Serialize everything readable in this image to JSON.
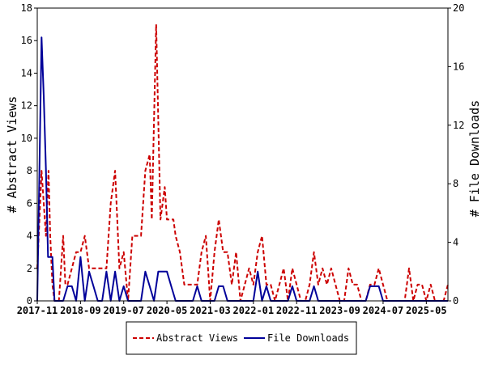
{
  "chart_data": {
    "type": "line",
    "xlabel": "",
    "ylabel_left": "# Abstract Views",
    "ylabel_right": "# File Downloads",
    "ylim_left": [
      0,
      18
    ],
    "ylim_right": [
      0,
      20
    ],
    "yticks_left": [
      "0",
      "2",
      "4",
      "6",
      "8",
      "10",
      "12",
      "14",
      "16",
      "18"
    ],
    "yticks_right": [
      "0",
      "4",
      "8",
      "12",
      "16",
      "20"
    ],
    "x_start_index": 0,
    "x_end_index": 95,
    "x_ticks": [
      {
        "label": "2017-11",
        "index": 0
      },
      {
        "label": "2018-09",
        "index": 10
      },
      {
        "label": "2019-07",
        "index": 20
      },
      {
        "label": "2020-05",
        "index": 30
      },
      {
        "label": "2021-03",
        "index": 40
      },
      {
        "label": "2022-01",
        "index": 50
      },
      {
        "label": "2022-11",
        "index": 60
      },
      {
        "label": "2023-09",
        "index": 70
      },
      {
        "label": "2024-07",
        "index": 80
      },
      {
        "label": "2025-05",
        "index": 90
      }
    ],
    "legend_position": "bottom",
    "grid": false,
    "series": [
      {
        "name": "Abstract Views",
        "axis": "left",
        "color": "#cc0000",
        "dash": "dashed",
        "points": [
          [
            0,
            2
          ],
          [
            0.5,
            5
          ],
          [
            1,
            8
          ],
          [
            1.5,
            6
          ],
          [
            2,
            4
          ],
          [
            2.6,
            8
          ],
          [
            3,
            4
          ],
          [
            3.5,
            1
          ],
          [
            4,
            0
          ],
          [
            5,
            0
          ],
          [
            6,
            4
          ],
          [
            6.5,
            1
          ],
          [
            7,
            1
          ],
          [
            8,
            2
          ],
          [
            9,
            3
          ],
          [
            10,
            3
          ],
          [
            11,
            4
          ],
          [
            12,
            2
          ],
          [
            13,
            2
          ],
          [
            14,
            2
          ],
          [
            15,
            2
          ],
          [
            16,
            2
          ],
          [
            17,
            6
          ],
          [
            18,
            8
          ],
          [
            19,
            2
          ],
          [
            20,
            3
          ],
          [
            21,
            0
          ],
          [
            22,
            4
          ],
          [
            23,
            4
          ],
          [
            24,
            4
          ],
          [
            25,
            8
          ],
          [
            26,
            9
          ],
          [
            26.5,
            5
          ],
          [
            27.5,
            17
          ],
          [
            28.5,
            5
          ],
          [
            29,
            6
          ],
          [
            29.5,
            7
          ],
          [
            30,
            5
          ],
          [
            31,
            5
          ],
          [
            31.5,
            5
          ],
          [
            32,
            4
          ],
          [
            33,
            3
          ],
          [
            34,
            1
          ],
          [
            35,
            1
          ],
          [
            36,
            1
          ],
          [
            37,
            1
          ],
          [
            38,
            3
          ],
          [
            39,
            4
          ],
          [
            40,
            0
          ],
          [
            41,
            3
          ],
          [
            42,
            5
          ],
          [
            43,
            3
          ],
          [
            44,
            3
          ],
          [
            45,
            1
          ],
          [
            46,
            3
          ],
          [
            47,
            0
          ],
          [
            48,
            1
          ],
          [
            49,
            2
          ],
          [
            50,
            1
          ],
          [
            51,
            3
          ],
          [
            52,
            4
          ],
          [
            53,
            1
          ],
          [
            54,
            1
          ],
          [
            55,
            0
          ],
          [
            56,
            1
          ],
          [
            57,
            2
          ],
          [
            58,
            0
          ],
          [
            59,
            2
          ],
          [
            60,
            1
          ],
          [
            61,
            0
          ],
          [
            62,
            0
          ],
          [
            63,
            1
          ],
          [
            64,
            3
          ],
          [
            65,
            1
          ],
          [
            66,
            2
          ],
          [
            67,
            1
          ],
          [
            68,
            2
          ],
          [
            69,
            1
          ],
          [
            70,
            0
          ],
          [
            71,
            0
          ],
          [
            72,
            2
          ],
          [
            73,
            1
          ],
          [
            74,
            1
          ],
          [
            75,
            0
          ],
          [
            76,
            0
          ],
          [
            77,
            1
          ],
          [
            78,
            1
          ],
          [
            79,
            2
          ],
          [
            80,
            1
          ],
          [
            81,
            0
          ],
          [
            82,
            0
          ],
          [
            83,
            0
          ],
          [
            84,
            0
          ],
          [
            85,
            0
          ],
          [
            86,
            2
          ],
          [
            87,
            0
          ],
          [
            88,
            1
          ],
          [
            89,
            1
          ],
          [
            90,
            0
          ],
          [
            91,
            1
          ],
          [
            92,
            0
          ],
          [
            93,
            0
          ],
          [
            94,
            0
          ],
          [
            95,
            1
          ]
        ]
      },
      {
        "name": "File Downloads",
        "axis": "right",
        "color": "#000099",
        "dash": "solid",
        "points": [
          [
            0,
            0
          ],
          [
            0.5,
            9
          ],
          [
            1,
            18
          ],
          [
            1.5,
            14
          ],
          [
            2,
            9
          ],
          [
            2.5,
            3
          ],
          [
            3,
            3
          ],
          [
            3.5,
            3
          ],
          [
            4,
            0
          ],
          [
            5,
            0
          ],
          [
            6,
            0
          ],
          [
            7,
            1
          ],
          [
            8,
            1
          ],
          [
            9,
            0
          ],
          [
            10,
            3
          ],
          [
            11,
            0
          ],
          [
            12,
            2
          ],
          [
            13,
            1
          ],
          [
            14,
            0
          ],
          [
            15,
            0
          ],
          [
            16,
            2
          ],
          [
            17,
            0
          ],
          [
            18,
            2
          ],
          [
            19,
            0
          ],
          [
            20,
            1
          ],
          [
            21,
            0
          ],
          [
            22,
            0
          ],
          [
            23,
            0
          ],
          [
            24,
            0
          ],
          [
            25,
            2
          ],
          [
            26,
            1
          ],
          [
            27,
            0
          ],
          [
            28,
            2
          ],
          [
            29,
            2
          ],
          [
            30,
            2
          ],
          [
            31,
            1
          ],
          [
            32,
            0
          ],
          [
            33,
            0
          ],
          [
            34,
            0
          ],
          [
            35,
            0
          ],
          [
            36,
            0
          ],
          [
            37,
            1
          ],
          [
            38,
            0
          ],
          [
            39,
            0
          ],
          [
            40,
            0
          ],
          [
            41,
            0
          ],
          [
            42,
            1
          ],
          [
            43,
            1
          ],
          [
            44,
            0
          ],
          [
            45,
            0
          ],
          [
            46,
            0
          ],
          [
            47,
            0
          ],
          [
            48,
            0
          ],
          [
            49,
            0
          ],
          [
            50,
            0
          ],
          [
            51,
            2
          ],
          [
            52,
            0
          ],
          [
            53,
            1
          ],
          [
            54,
            0
          ],
          [
            55,
            0
          ],
          [
            56,
            0
          ],
          [
            57,
            0
          ],
          [
            58,
            0
          ],
          [
            59,
            1
          ],
          [
            60,
            0
          ],
          [
            61,
            0
          ],
          [
            62,
            0
          ],
          [
            63,
            0
          ],
          [
            64,
            1
          ],
          [
            65,
            0
          ],
          [
            66,
            0
          ],
          [
            67,
            0
          ],
          [
            68,
            0
          ],
          [
            69,
            0
          ],
          [
            70,
            0
          ],
          [
            71,
            0
          ],
          [
            72,
            0
          ],
          [
            73,
            0
          ],
          [
            74,
            0
          ],
          [
            75,
            0
          ],
          [
            76,
            0
          ],
          [
            77,
            1
          ],
          [
            78,
            1
          ],
          [
            79,
            1
          ],
          [
            80,
            0
          ],
          [
            81,
            0
          ],
          [
            82,
            0
          ],
          [
            83,
            0
          ],
          [
            84,
            0
          ],
          [
            85,
            0
          ],
          [
            86,
            0
          ],
          [
            87,
            0
          ],
          [
            88,
            0
          ],
          [
            89,
            0
          ],
          [
            90,
            0
          ],
          [
            91,
            0
          ],
          [
            92,
            0
          ],
          [
            93,
            0
          ],
          [
            94,
            0
          ],
          [
            95,
            0
          ]
        ]
      }
    ]
  }
}
